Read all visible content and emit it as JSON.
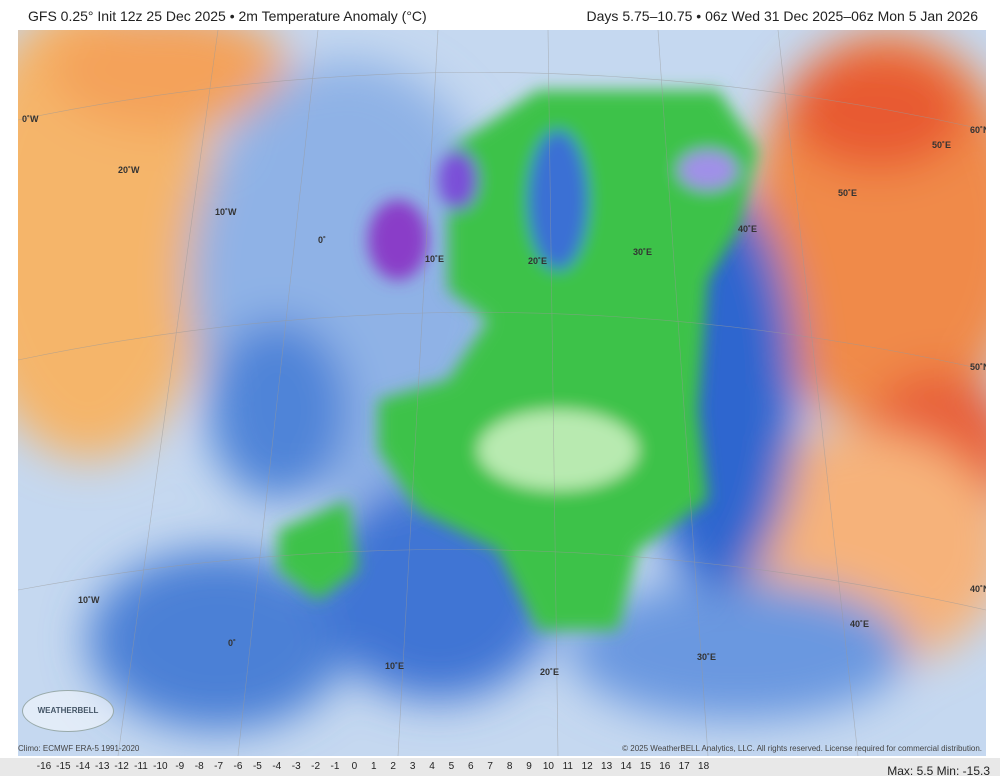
{
  "header": {
    "left": "GFS 0.25° Init 12z 25 Dec 2025 • 2m Temperature Anomaly (°C)",
    "right": "Days 5.75–10.75 • 06z Wed 31 Dec 2025–06z Mon 5 Jan 2026"
  },
  "map": {
    "grid_labels": [
      "0˚W",
      "20˚W",
      "10˚W",
      "0˚",
      "10˚E",
      "20˚E",
      "30˚E",
      "40˚E",
      "50˚E",
      "50˚E",
      "60˚N",
      "50˚N",
      "40˚N",
      "10˚W",
      "0˚",
      "10˚E",
      "20˚E",
      "30˚E",
      "40˚E"
    ]
  },
  "logo": "WEATHERBELL",
  "footer": {
    "climo": "Climo: ECMWF ERA-5 1991-2020",
    "copyright": "© 2025 WeatherBELL Analytics, LLC. All rights reserved. License required for commercial distribution."
  },
  "colorbar": {
    "ticks": [
      -16,
      -15,
      -14,
      -13,
      -12,
      -11,
      -10,
      -9,
      -8,
      -7,
      -6,
      -5,
      -4,
      -3,
      -2,
      -1,
      0,
      1,
      2,
      3,
      4,
      5,
      6,
      7,
      8,
      9,
      10,
      11,
      12,
      13,
      14,
      15,
      16,
      17,
      18
    ]
  },
  "stats": {
    "max": "Max: 5.5",
    "min": "Min: -15.3"
  }
}
